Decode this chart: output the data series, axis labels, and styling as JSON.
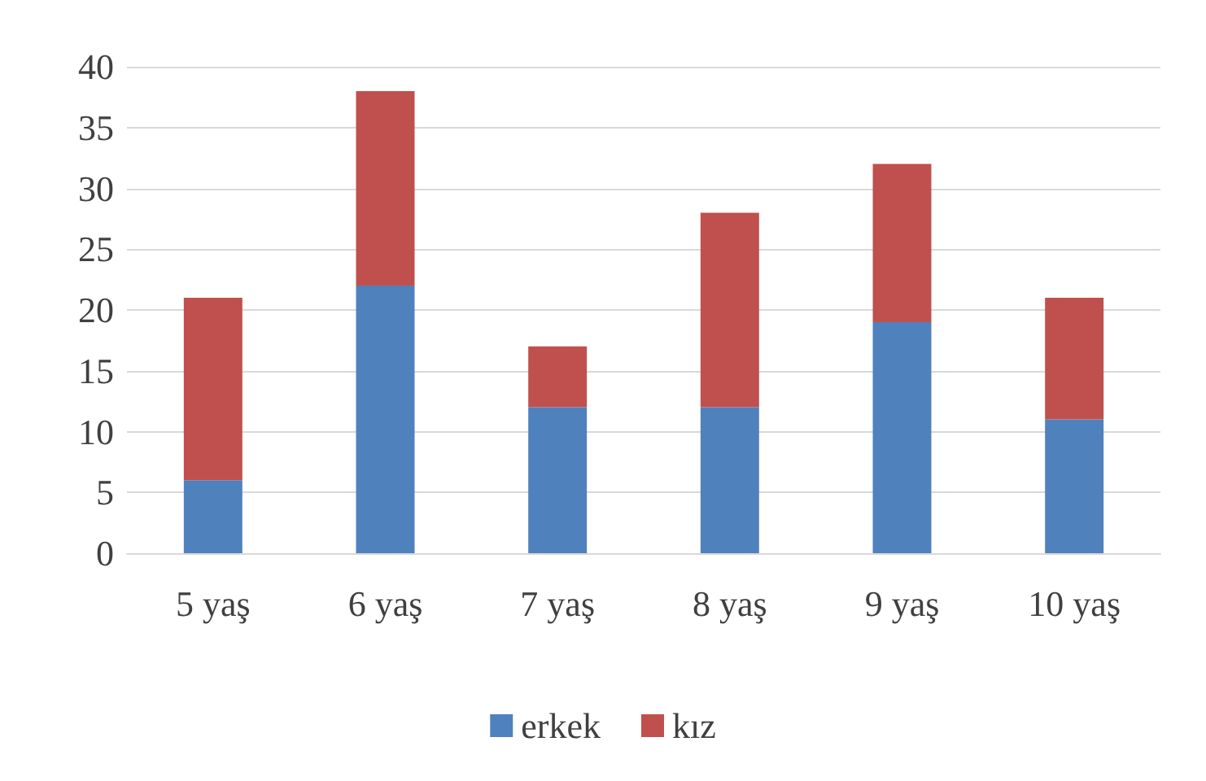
{
  "chart_data": {
    "type": "bar",
    "stacked": true,
    "categories": [
      "5 yaş",
      "6 yaş",
      "7 yaş",
      "8 yaş",
      "9 yaş",
      "10 yaş"
    ],
    "series": [
      {
        "name": "erkek",
        "color": "#4f81bd",
        "values": [
          6,
          22,
          12,
          12,
          19,
          11
        ]
      },
      {
        "name": "kız",
        "color": "#c0504d",
        "values": [
          15,
          16,
          5,
          16,
          13,
          10
        ]
      }
    ],
    "ylim": [
      0,
      40
    ],
    "yticks": [
      0,
      5,
      10,
      15,
      20,
      25,
      30,
      35,
      40
    ],
    "grid": "y",
    "legend": "bottom"
  }
}
